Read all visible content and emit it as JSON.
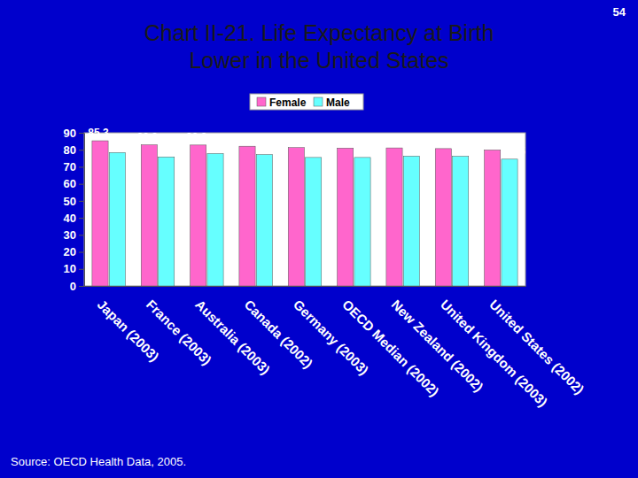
{
  "chart_data": {
    "type": "bar",
    "title": [
      "Chart II-21. Life Expectancy at Birth",
      "Lower in the United States"
    ],
    "page_number": "54",
    "source": "Source: OECD Health Data, 2005.",
    "categories": [
      "Japan (2003)",
      "France (2003)",
      "Australia (2003)",
      "Canada (2002)",
      "Germany (2003)",
      "OECD Median (2002)",
      "New Zealand (2002)",
      "United Kingdom (2003)",
      "United States (2002)"
    ],
    "series": [
      {
        "name": "Female",
        "color": "#ff66cc",
        "values": [
          85.3,
          82.9,
          82.8,
          82.1,
          81.3,
          81,
          81.1,
          80.7,
          79.9
        ]
      },
      {
        "name": "Male",
        "color": "#66ffff",
        "values": [
          78.4,
          75.8,
          77.8,
          77.2,
          75.5,
          75.5,
          76.3,
          76.2,
          74.5
        ]
      }
    ],
    "ylim": [
      0,
      90
    ],
    "yticks": [
      0,
      10,
      20,
      30,
      40,
      50,
      60,
      70,
      80,
      90
    ],
    "grid": false,
    "legend": "top",
    "data_labels": true
  }
}
